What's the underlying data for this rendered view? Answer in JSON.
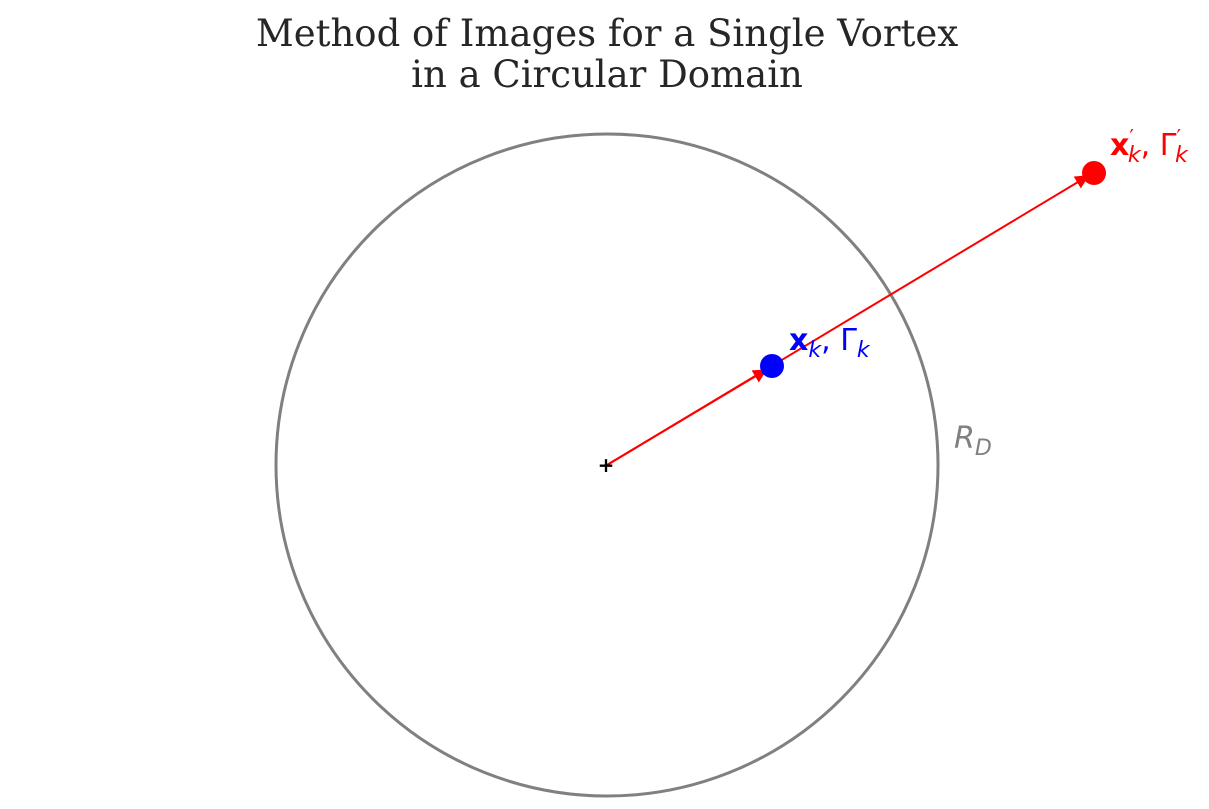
{
  "title": {
    "line1": "Method of Images for a Single Vortex",
    "line2": "in a Circular Domain"
  },
  "labels": {
    "vortex": {
      "position_symbol": "x",
      "position_subscript": "k",
      "separator": ", ",
      "circulation_symbol": "Γ",
      "circulation_subscript": "k"
    },
    "image_vortex": {
      "position_symbol": "x",
      "position_prime": "′",
      "position_subscript": "k",
      "separator": ", ",
      "circulation_symbol": "Γ",
      "circulation_prime": "′",
      "circulation_subscript": "k"
    },
    "domain_radius": {
      "symbol": "R",
      "subscript": "D"
    },
    "center_marker": "+"
  },
  "colors": {
    "vortex": "#0000ff",
    "image_vortex": "#ff0000",
    "boundary": "#808080",
    "arrow": "#ff0000",
    "center": "#000000",
    "title": "#262626"
  }
}
